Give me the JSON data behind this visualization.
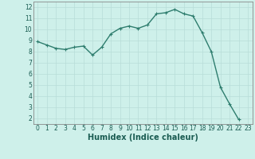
{
  "x": [
    0,
    1,
    2,
    3,
    4,
    5,
    6,
    7,
    8,
    9,
    10,
    11,
    12,
    13,
    14,
    15,
    16,
    17,
    18,
    19,
    20,
    21,
    22,
    23
  ],
  "y": [
    8.9,
    8.6,
    8.3,
    8.2,
    8.4,
    8.5,
    7.7,
    8.4,
    9.6,
    10.1,
    10.3,
    10.1,
    10.4,
    11.4,
    11.5,
    11.8,
    11.4,
    11.2,
    9.7,
    8.0,
    4.8,
    3.3,
    1.9,
    null
  ],
  "xlabel": "Humidex (Indice chaleur)",
  "line_color": "#2e7d6e",
  "bg_color": "#cef0ea",
  "grid_color": "#b8ddd8",
  "ylim": [
    1.5,
    12.5
  ],
  "xlim": [
    -0.5,
    23.5
  ],
  "yticks": [
    2,
    3,
    4,
    5,
    6,
    7,
    8,
    9,
    10,
    11,
    12
  ],
  "xticks": [
    0,
    1,
    2,
    3,
    4,
    5,
    6,
    7,
    8,
    9,
    10,
    11,
    12,
    13,
    14,
    15,
    16,
    17,
    18,
    19,
    20,
    21,
    22,
    23
  ],
  "marker_size": 1.8,
  "line_width": 1.0,
  "tick_fontsize": 5.5,
  "xlabel_fontsize": 7.0
}
